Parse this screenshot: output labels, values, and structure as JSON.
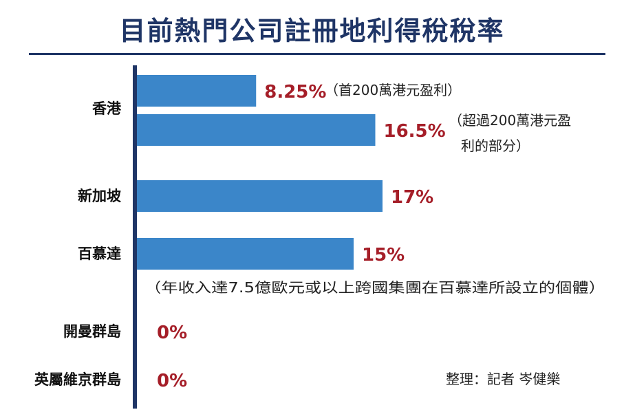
{
  "title": "目前熱門公司註冊地利得稅稅率",
  "credit": "整理：記者 岑健樂",
  "colors": {
    "bar": "#3b86c9",
    "axis": "#1f3566",
    "value": "#a51e28",
    "title": "#1f3566"
  },
  "chart_data": {
    "type": "bar",
    "orientation": "horizontal",
    "unit": "%",
    "xlim": [
      0,
      20
    ],
    "categories": [
      "香港",
      "新加坡",
      "百慕達",
      "開曼群島",
      "英屬維京群島"
    ],
    "bars": [
      {
        "category": "香港",
        "value": 8.25,
        "label": "8.25%",
        "note": [
          "（首200萬港元盈利）"
        ]
      },
      {
        "category": "香港",
        "value": 16.5,
        "label": "16.5%",
        "note": [
          "（超過200萬港元盈",
          "利的部分）"
        ]
      },
      {
        "category": "新加坡",
        "value": 17,
        "label": "17%",
        "note": []
      },
      {
        "category": "百慕達",
        "value": 15,
        "label": "15%",
        "note": [
          "（年收入達7.5億歐元或以上跨國集團在百慕達所設立的個體）"
        ]
      },
      {
        "category": "開曼群島",
        "value": 0,
        "label": "0%",
        "note": []
      },
      {
        "category": "英屬維京群島",
        "value": 0,
        "label": "0%",
        "note": []
      }
    ]
  }
}
